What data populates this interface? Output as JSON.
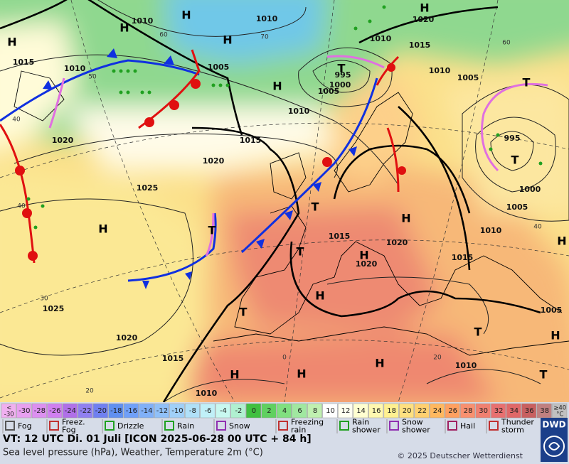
{
  "map": {
    "pressure_labels": [
      "1010",
      "1010",
      "1020",
      "1015",
      "1010",
      "1005",
      "1010",
      "1015",
      "995",
      "1000",
      "1005",
      "1010",
      "1005",
      "1010",
      "1020",
      "1015",
      "1020",
      "1025",
      "995",
      "1000",
      "1005",
      "1010",
      "1015",
      "1020",
      "1020",
      "1015",
      "1005",
      "1025",
      "1020",
      "1015",
      "1010",
      "1010"
    ],
    "systems": [
      "H",
      "H",
      "H",
      "H",
      "H",
      "T",
      "H",
      "T",
      "T",
      "T",
      "H",
      "H",
      "T",
      "T",
      "H",
      "H",
      "T",
      "T",
      "H",
      "H",
      "H",
      "H",
      "H",
      "T"
    ],
    "graticule_labels": [
      "60",
      "70",
      "50",
      "40",
      "40",
      "30",
      "20",
      "0",
      "20",
      "40",
      "60"
    ]
  },
  "temperature_scale": {
    "ticks": [
      {
        "value": -30,
        "label": "< -30"
      },
      -30,
      -28,
      -26,
      -24,
      -22,
      -20,
      -18,
      -16,
      -14,
      -12,
      -10,
      -8,
      -6,
      -4,
      -2,
      0,
      2,
      4,
      6,
      8,
      10,
      12,
      14,
      16,
      18,
      20,
      22,
      24,
      26,
      28,
      30,
      32,
      34,
      36,
      38,
      {
        "value": 40,
        "label": "≥40 °C"
      }
    ],
    "colors": [
      "#f0b0f0",
      "#e8a0f0",
      "#dc90f0",
      "#d080f0",
      "#b070e8",
      "#9080f0",
      "#7080f0",
      "#6090f0",
      "#70a0f8",
      "#80b0f8",
      "#90c0f8",
      "#a0d0f8",
      "#b0e0f8",
      "#c0f0f8",
      "#c8f8f0",
      "#b0f0d0",
      "#40c040",
      "#60d060",
      "#80e080",
      "#a0e8a0",
      "#c0f0b0",
      "#ffffff",
      "#fffff0",
      "#ffffd0",
      "#fff8b0",
      "#fff090",
      "#ffe080",
      "#ffd070",
      "#ffb860",
      "#ffa060",
      "#f89070",
      "#f08070",
      "#e87070",
      "#e06868",
      "#c86060",
      "#c08080",
      "#c0c0c0"
    ]
  },
  "legend": [
    "Fog",
    "Freez. Fog",
    "Drizzle",
    "Rain",
    "Snow",
    "Freezing rain",
    "Rain shower",
    "Snow shower",
    "Hail",
    "Thunder storm"
  ],
  "footer": {
    "valid_time": "VT: 12 UTC Di.  01 Juli [ICON 2025-06-28  00 UTC + 84 h]",
    "description": "Sea level pressure (hPa), Weather, Temperature 2m (°C)",
    "copyright": "© 2025 Deutscher Wetterdienst",
    "logo": "DWD"
  }
}
